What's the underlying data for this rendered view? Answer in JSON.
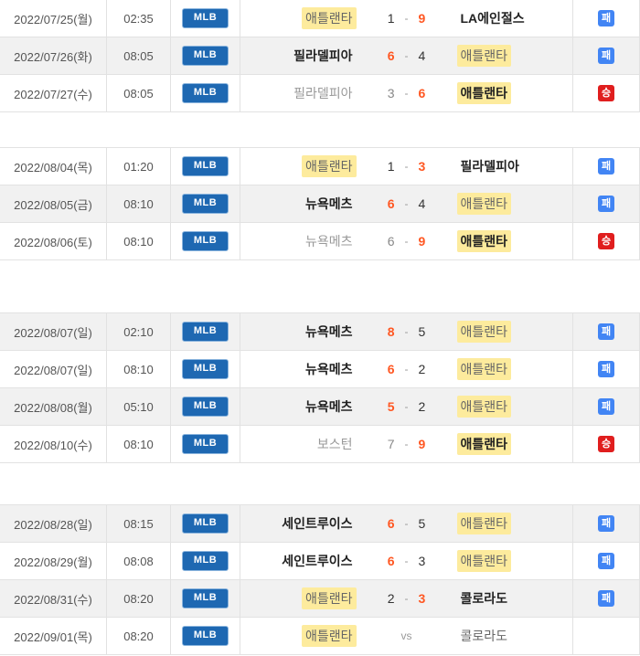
{
  "league_label": "MLB",
  "colors": {
    "zebra": "#f1f1f1",
    "border": "#e2e2e2",
    "highlight": "#fdeb9d",
    "score_win": "#ff5722",
    "league_bg": "#1e68b2",
    "league_border": "#8ab4dd",
    "loss_badge": "#4285f4",
    "win_badge": "#e01e1e"
  },
  "result_labels": {
    "win": "승",
    "loss": "패"
  },
  "sections": [
    {
      "rows": [
        {
          "date": "2022/07/25(월)",
          "time": "02:35",
          "league": "MLB",
          "shaded": false,
          "home": {
            "name": "애틀랜타",
            "hl": true,
            "emph": "none"
          },
          "score": {
            "left": "1",
            "left_style": "dark",
            "sep": "-",
            "right": "9",
            "right_style": "win"
          },
          "away": {
            "name": "LA에인절스",
            "hl": false,
            "emph": "win"
          },
          "result": {
            "label": "패",
            "type": "loss"
          }
        },
        {
          "date": "2022/07/26(화)",
          "time": "08:05",
          "league": "MLB",
          "shaded": true,
          "home": {
            "name": "필라델피아",
            "hl": false,
            "emph": "win"
          },
          "score": {
            "left": "6",
            "left_style": "win",
            "sep": "-",
            "right": "4",
            "right_style": "dark"
          },
          "away": {
            "name": "애틀랜타",
            "hl": true,
            "emph": "none"
          },
          "result": {
            "label": "패",
            "type": "loss"
          }
        },
        {
          "date": "2022/07/27(수)",
          "time": "08:05",
          "league": "MLB",
          "shaded": false,
          "home": {
            "name": "필라델피아",
            "hl": false,
            "emph": "lose"
          },
          "score": {
            "left": "3",
            "left_style": "faded",
            "sep": "-",
            "right": "6",
            "right_style": "win"
          },
          "away": {
            "name": "애틀랜타",
            "hl": true,
            "emph": "win"
          },
          "result": {
            "label": "승",
            "type": "win"
          }
        }
      ]
    },
    {
      "rows": [
        {
          "date": "2022/08/04(목)",
          "time": "01:20",
          "league": "MLB",
          "shaded": false,
          "home": {
            "name": "애틀랜타",
            "hl": true,
            "emph": "none"
          },
          "score": {
            "left": "1",
            "left_style": "dark",
            "sep": "-",
            "right": "3",
            "right_style": "win"
          },
          "away": {
            "name": "필라델피아",
            "hl": false,
            "emph": "win"
          },
          "result": {
            "label": "패",
            "type": "loss"
          }
        },
        {
          "date": "2022/08/05(금)",
          "time": "08:10",
          "league": "MLB",
          "shaded": true,
          "home": {
            "name": "뉴욕메츠",
            "hl": false,
            "emph": "win"
          },
          "score": {
            "left": "6",
            "left_style": "win",
            "sep": "-",
            "right": "4",
            "right_style": "dark"
          },
          "away": {
            "name": "애틀랜타",
            "hl": true,
            "emph": "none"
          },
          "result": {
            "label": "패",
            "type": "loss"
          }
        },
        {
          "date": "2022/08/06(토)",
          "time": "08:10",
          "league": "MLB",
          "shaded": false,
          "home": {
            "name": "뉴욕메츠",
            "hl": false,
            "emph": "lose"
          },
          "score": {
            "left": "6",
            "left_style": "faded",
            "sep": "-",
            "right": "9",
            "right_style": "win"
          },
          "away": {
            "name": "애틀랜타",
            "hl": true,
            "emph": "win"
          },
          "result": {
            "label": "승",
            "type": "win"
          }
        }
      ]
    },
    {
      "rows": [
        {
          "date": "2022/08/07(일)",
          "time": "02:10",
          "league": "MLB",
          "shaded": true,
          "home": {
            "name": "뉴욕메츠",
            "hl": false,
            "emph": "win"
          },
          "score": {
            "left": "8",
            "left_style": "win",
            "sep": "-",
            "right": "5",
            "right_style": "dark"
          },
          "away": {
            "name": "애틀랜타",
            "hl": true,
            "emph": "none"
          },
          "result": {
            "label": "패",
            "type": "loss"
          }
        },
        {
          "date": "2022/08/07(일)",
          "time": "08:10",
          "league": "MLB",
          "shaded": false,
          "home": {
            "name": "뉴욕메츠",
            "hl": false,
            "emph": "win"
          },
          "score": {
            "left": "6",
            "left_style": "win",
            "sep": "-",
            "right": "2",
            "right_style": "dark"
          },
          "away": {
            "name": "애틀랜타",
            "hl": true,
            "emph": "none"
          },
          "result": {
            "label": "패",
            "type": "loss"
          }
        },
        {
          "date": "2022/08/08(월)",
          "time": "05:10",
          "league": "MLB",
          "shaded": true,
          "home": {
            "name": "뉴욕메츠",
            "hl": false,
            "emph": "win"
          },
          "score": {
            "left": "5",
            "left_style": "win",
            "sep": "-",
            "right": "2",
            "right_style": "dark"
          },
          "away": {
            "name": "애틀랜타",
            "hl": true,
            "emph": "none"
          },
          "result": {
            "label": "패",
            "type": "loss"
          }
        },
        {
          "date": "2022/08/10(수)",
          "time": "08:10",
          "league": "MLB",
          "shaded": false,
          "home": {
            "name": "보스턴",
            "hl": false,
            "emph": "lose"
          },
          "score": {
            "left": "7",
            "left_style": "faded",
            "sep": "-",
            "right": "9",
            "right_style": "win"
          },
          "away": {
            "name": "애틀랜타",
            "hl": true,
            "emph": "win"
          },
          "result": {
            "label": "승",
            "type": "win"
          }
        }
      ]
    },
    {
      "rows": [
        {
          "date": "2022/08/28(일)",
          "time": "08:15",
          "league": "MLB",
          "shaded": true,
          "home": {
            "name": "세인트루이스",
            "hl": false,
            "emph": "win"
          },
          "score": {
            "left": "6",
            "left_style": "win",
            "sep": "-",
            "right": "5",
            "right_style": "dark"
          },
          "away": {
            "name": "애틀랜타",
            "hl": true,
            "emph": "none"
          },
          "result": {
            "label": "패",
            "type": "loss"
          }
        },
        {
          "date": "2022/08/29(월)",
          "time": "08:08",
          "league": "MLB",
          "shaded": false,
          "home": {
            "name": "세인트루이스",
            "hl": false,
            "emph": "win"
          },
          "score": {
            "left": "6",
            "left_style": "win",
            "sep": "-",
            "right": "3",
            "right_style": "dark"
          },
          "away": {
            "name": "애틀랜타",
            "hl": true,
            "emph": "none"
          },
          "result": {
            "label": "패",
            "type": "loss"
          }
        },
        {
          "date": "2022/08/31(수)",
          "time": "08:20",
          "league": "MLB",
          "shaded": true,
          "home": {
            "name": "애틀랜타",
            "hl": true,
            "emph": "none"
          },
          "score": {
            "left": "2",
            "left_style": "dark",
            "sep": "-",
            "right": "3",
            "right_style": "win"
          },
          "away": {
            "name": "콜로라도",
            "hl": false,
            "emph": "win"
          },
          "result": {
            "label": "패",
            "type": "loss"
          }
        },
        {
          "date": "2022/09/01(목)",
          "time": "08:20",
          "league": "MLB",
          "shaded": false,
          "home": {
            "name": "애틀랜타",
            "hl": true,
            "emph": "none"
          },
          "score": {
            "left": "",
            "left_style": "dark",
            "sep": "vs",
            "right": "",
            "right_style": "dark"
          },
          "away": {
            "name": "콜로라도",
            "hl": false,
            "emph": "none"
          },
          "result": null
        }
      ]
    }
  ]
}
